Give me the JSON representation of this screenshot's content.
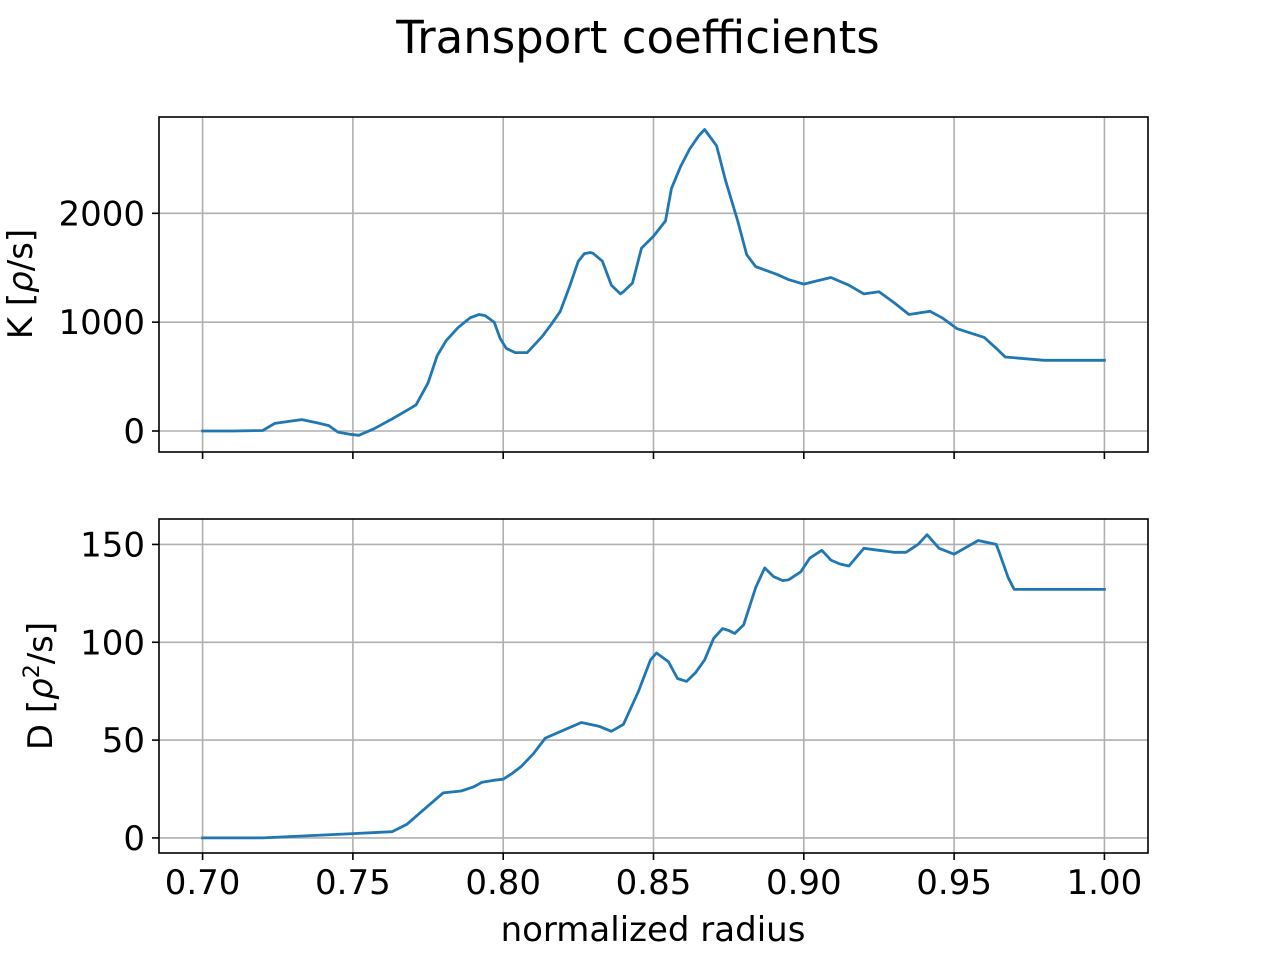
{
  "figure_title": "Transport coefficients",
  "colors": {
    "series": "#1f77b4"
  },
  "chart_data": [
    {
      "type": "line",
      "ylabel_main": "K [",
      "ylabel_symbol": "ρ",
      "ylabel_sup": "",
      "ylabel_tail": "/s]",
      "xlabel": "",
      "xlim": [
        0.6855,
        1.0145
      ],
      "ylim": [
        -193,
        2885
      ],
      "xticks": [
        0.7,
        0.75,
        0.8,
        0.85,
        0.9,
        0.95,
        1.0
      ],
      "xtick_labels": [],
      "yticks": [
        0,
        1000,
        2000
      ],
      "ytick_labels": [
        "0",
        "1000",
        "2000"
      ],
      "grid": true,
      "x": [
        0.7,
        0.71,
        0.72,
        0.724,
        0.729,
        0.733,
        0.738,
        0.742,
        0.745,
        0.749,
        0.752,
        0.757,
        0.763,
        0.768,
        0.771,
        0.775,
        0.778,
        0.781,
        0.785,
        0.789,
        0.792,
        0.794,
        0.797,
        0.799,
        0.801,
        0.804,
        0.808,
        0.81,
        0.813,
        0.816,
        0.819,
        0.822,
        0.825,
        0.827,
        0.829,
        0.83,
        0.833,
        0.836,
        0.839,
        0.84,
        0.843,
        0.846,
        0.85,
        0.854,
        0.856,
        0.859,
        0.862,
        0.865,
        0.867,
        0.871,
        0.874,
        0.878,
        0.881,
        0.884,
        0.887,
        0.891,
        0.895,
        0.9,
        0.903,
        0.909,
        0.915,
        0.92,
        0.925,
        0.93,
        0.935,
        0.942,
        0.946,
        0.951,
        0.96,
        0.964,
        0.967,
        0.98,
        1.0
      ],
      "series": [
        {
          "values": [
            0,
            0,
            5,
            70,
            90,
            105,
            75,
            50,
            -10,
            -30,
            -40,
            20,
            110,
            190,
            240,
            440,
            690,
            830,
            950,
            1040,
            1070,
            1060,
            1000,
            850,
            760,
            720,
            720,
            780,
            870,
            980,
            1100,
            1320,
            1560,
            1630,
            1640,
            1630,
            1560,
            1340,
            1260,
            1280,
            1360,
            1680,
            1790,
            1930,
            2230,
            2430,
            2590,
            2710,
            2770,
            2620,
            2300,
            1930,
            1620,
            1510,
            1480,
            1440,
            1390,
            1350,
            1370,
            1410,
            1340,
            1260,
            1280,
            1180,
            1070,
            1100,
            1040,
            940,
            860,
            760,
            680,
            650,
            650
          ]
        }
      ]
    },
    {
      "type": "line",
      "ylabel_main": "D [",
      "ylabel_symbol": "ρ",
      "ylabel_sup": "2",
      "ylabel_tail": "/s]",
      "xlabel": "normalized radius",
      "xlim": [
        0.6855,
        1.0145
      ],
      "ylim": [
        -7.7,
        163
      ],
      "xticks": [
        0.7,
        0.75,
        0.8,
        0.85,
        0.9,
        0.95,
        1.0
      ],
      "xtick_labels": [
        "0.70",
        "0.75",
        "0.80",
        "0.85",
        "0.90",
        "0.95",
        "1.00"
      ],
      "yticks": [
        0,
        50,
        100,
        150
      ],
      "ytick_labels": [
        "0",
        "50",
        "100",
        "150"
      ],
      "grid": true,
      "x": [
        0.7,
        0.72,
        0.75,
        0.763,
        0.768,
        0.774,
        0.78,
        0.786,
        0.79,
        0.793,
        0.797,
        0.8,
        0.803,
        0.806,
        0.81,
        0.814,
        0.82,
        0.826,
        0.832,
        0.836,
        0.84,
        0.845,
        0.849,
        0.851,
        0.855,
        0.858,
        0.861,
        0.864,
        0.867,
        0.87,
        0.873,
        0.875,
        0.877,
        0.88,
        0.884,
        0.887,
        0.89,
        0.893,
        0.895,
        0.899,
        0.902,
        0.906,
        0.909,
        0.912,
        0.915,
        0.92,
        0.925,
        0.93,
        0.934,
        0.938,
        0.941,
        0.945,
        0.95,
        0.958,
        0.964,
        0.965,
        0.968,
        0.97,
        0.972,
        0.985,
        1.0
      ],
      "series": [
        {
          "values": [
            0,
            0,
            2.2,
            3.2,
            7,
            15,
            23,
            24,
            26,
            28.5,
            29.5,
            30,
            33,
            36.5,
            43,
            51,
            55,
            59,
            57,
            54.5,
            58,
            75,
            91,
            94.5,
            90,
            81.5,
            80,
            84.5,
            91,
            102,
            107,
            106,
            104.5,
            109,
            128,
            138,
            133.5,
            131.5,
            132,
            136,
            143,
            147,
            142,
            140,
            139,
            148,
            147,
            146,
            146,
            150,
            155,
            148,
            145,
            152,
            150,
            146,
            133,
            127,
            127,
            127,
            127
          ]
        }
      ]
    }
  ]
}
